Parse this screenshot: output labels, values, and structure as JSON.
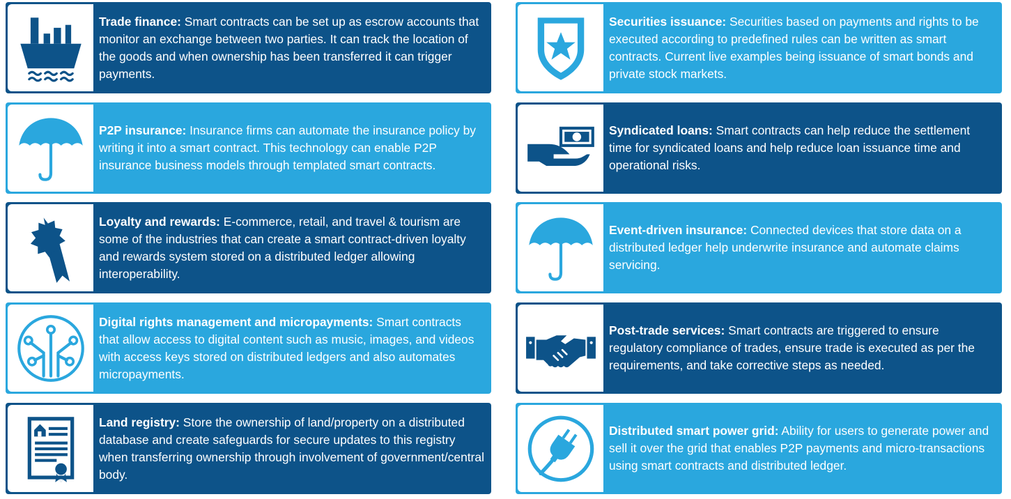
{
  "colors": {
    "dark": "#0d5389",
    "light": "#2aa7de",
    "icon_bg": "#ffffff",
    "text": "#ffffff"
  },
  "cards": [
    {
      "icon": "ship-icon",
      "title": "Trade finance:",
      "text": " Smart contracts can be set up as escrow accounts that monitor an exchange between two parties. It can track the location of the goods and when ownership has been transferred it can trigger payments."
    },
    {
      "icon": "shield-star-icon",
      "title": "Securities issuance:",
      "text": " Securities based on payments and rights to be executed according to predefined rules can be written as smart contracts. Current live examples being issuance of smart bonds and private stock markets."
    },
    {
      "icon": "umbrella-icon",
      "title": "P2P insurance:",
      "text": " Insurance firms can automate the insurance policy by writing it into a smart contract. This technology can enable P2P insurance business models through templated smart contracts."
    },
    {
      "icon": "hand-money-icon",
      "title": "Syndicated loans:",
      "text": " Smart contracts can help reduce the settlement time for syndicated loans and help reduce loan issuance time and operational risks."
    },
    {
      "icon": "award-ribbon-icon",
      "title": "Loyalty and rewards:",
      "text": " E-commerce, retail, and travel & tourism are some of the industries that can create a smart contract-driven loyalty and rewards system stored on a distributed ledger allowing interoperability."
    },
    {
      "icon": "umbrella-icon",
      "title": "Event-driven insurance:",
      "text": " Connected devices that store data on a distributed ledger help underwrite insurance and automate claims servicing."
    },
    {
      "icon": "circuit-icon",
      "title": "Digital rights management and micropayments:",
      "text": " Smart contracts that allow access to digital content such as music, images, and videos with access keys stored on distributed ledgers and also automates micropayments."
    },
    {
      "icon": "handshake-icon",
      "title": "Post-trade services:",
      "text": " Smart contracts are triggered to ensure regulatory compliance of trades, ensure trade is executed as per the requirements, and take corrective steps as needed."
    },
    {
      "icon": "certificate-house-icon",
      "title": "Land registry:",
      "text": " Store the ownership of land/property on a distributed database and create safeguards for secure updates to this registry when transferring ownership through involvement of government/central body."
    },
    {
      "icon": "power-plug-icon",
      "title": "Distributed smart power grid:",
      "text": " Ability for users to generate power and sell it over the grid that enables P2P payments and micro-transactions using smart contracts and distributed ledger."
    }
  ]
}
